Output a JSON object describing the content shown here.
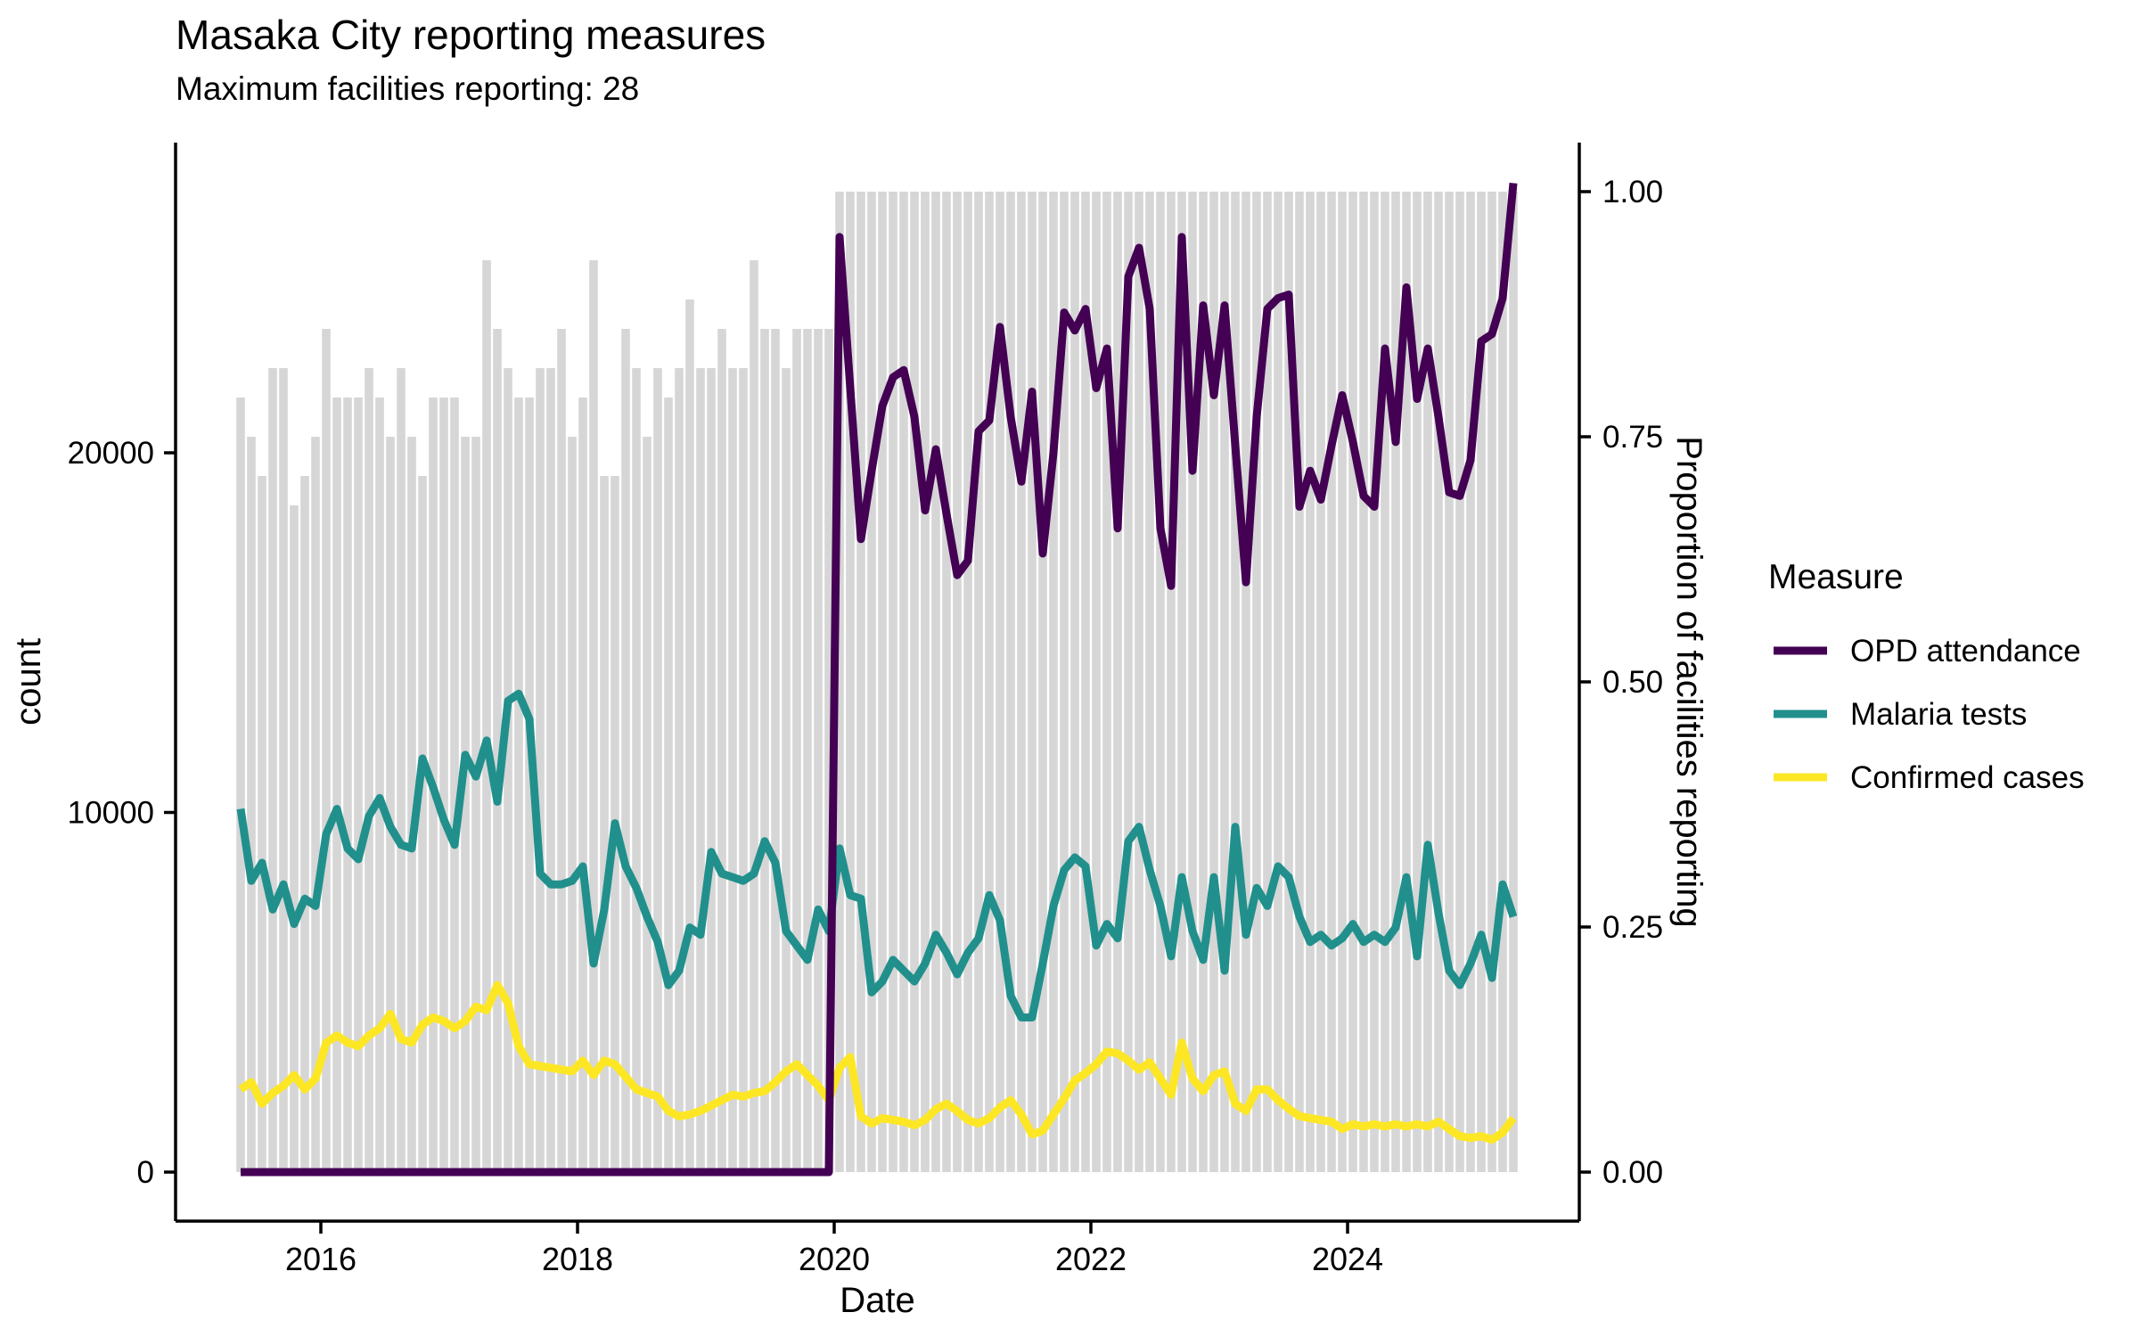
{
  "title": "Masaka City reporting measures",
  "subtitle": "Maximum facilities reporting: 28",
  "max_facilities": 28,
  "chart_data": {
    "type": "line",
    "title": "Masaka City reporting measures",
    "subtitle": "Maximum facilities reporting: 28",
    "xlabel": "Date",
    "ylabel_left": "count",
    "ylabel_right": "Proportion of facilities reporting",
    "legend_title": "Measure",
    "legend_position": "right",
    "grid": false,
    "x_ticks": [
      2016,
      2018,
      2020,
      2022,
      2024
    ],
    "y_left_ticks": [
      0,
      10000,
      20000
    ],
    "y_left_max": 28600,
    "y_right_ticks": [
      "0.00",
      "0.25",
      "0.50",
      "0.75",
      "1.00"
    ],
    "bar_color": "#d6d6d6",
    "start_month": "2015-05",
    "end_month": "2025-04",
    "n_months": 120,
    "bars": {
      "name": "Proportion of facilities reporting",
      "values": [
        0.79,
        0.75,
        0.71,
        0.82,
        0.82,
        0.68,
        0.71,
        0.75,
        0.86,
        0.79,
        0.79,
        0.79,
        0.82,
        0.79,
        0.75,
        0.82,
        0.75,
        0.71,
        0.79,
        0.79,
        0.79,
        0.75,
        0.75,
        0.93,
        0.86,
        0.82,
        0.79,
        0.79,
        0.82,
        0.82,
        0.86,
        0.75,
        0.79,
        0.93,
        0.71,
        0.71,
        0.86,
        0.82,
        0.75,
        0.82,
        0.79,
        0.82,
        0.89,
        0.82,
        0.82,
        0.86,
        0.82,
        0.82,
        0.93,
        0.86,
        0.86,
        0.82,
        0.86,
        0.86,
        0.86,
        0.86,
        1,
        1,
        1,
        1,
        1,
        1,
        1,
        1,
        1,
        1,
        1,
        1,
        1,
        1,
        1,
        1,
        1,
        1,
        1,
        1,
        1,
        1,
        1,
        1,
        1,
        1,
        1,
        1,
        1,
        1,
        1,
        1,
        1,
        1,
        1,
        1,
        1,
        1,
        1,
        1,
        1,
        1,
        1,
        1,
        1,
        1,
        1,
        1,
        1,
        1,
        1,
        1,
        1,
        1,
        1,
        1,
        1,
        1,
        1,
        1,
        1,
        1,
        1,
        1
      ]
    },
    "series": [
      {
        "name": "OPD attendance",
        "color": "#440154",
        "axis": "left",
        "values": [
          0,
          0,
          0,
          0,
          0,
          0,
          0,
          0,
          0,
          0,
          0,
          0,
          0,
          0,
          0,
          0,
          0,
          0,
          0,
          0,
          0,
          0,
          0,
          0,
          0,
          0,
          0,
          0,
          0,
          0,
          0,
          0,
          0,
          0,
          0,
          0,
          0,
          0,
          0,
          0,
          0,
          0,
          0,
          0,
          0,
          0,
          0,
          0,
          0,
          0,
          0,
          0,
          0,
          0,
          0,
          0,
          26000,
          21800,
          17600,
          19500,
          21300,
          22100,
          22300,
          21000,
          18400,
          20100,
          18300,
          16600,
          17000,
          20600,
          20900,
          23500,
          21000,
          19200,
          21700,
          17200,
          20000,
          23900,
          23400,
          24000,
          21800,
          22900,
          17900,
          24900,
          25700,
          24000,
          17900,
          16300,
          26000,
          19500,
          24100,
          21600,
          24100,
          20200,
          16400,
          21000,
          24000,
          24300,
          24400,
          18500,
          19500,
          18700,
          20200,
          21600,
          20300,
          18800,
          18500,
          22900,
          20300,
          24600,
          21500,
          22900,
          21000,
          18900,
          18800,
          19800,
          23100,
          23300,
          24300,
          27500
        ]
      },
      {
        "name": "Malaria tests",
        "color": "#21908C",
        "axis": "left",
        "values": [
          10100,
          8100,
          8600,
          7300,
          8000,
          6900,
          7600,
          7400,
          9400,
          10100,
          9000,
          8700,
          9900,
          10400,
          9600,
          9100,
          9000,
          11500,
          10700,
          9800,
          9100,
          11600,
          11000,
          12000,
          10300,
          13100,
          13300,
          12600,
          8300,
          8000,
          8000,
          8100,
          8500,
          5800,
          7300,
          9700,
          8500,
          7900,
          7100,
          6400,
          5200,
          5600,
          6800,
          6600,
          8900,
          8300,
          8200,
          8100,
          8300,
          9200,
          8600,
          6700,
          6300,
          5900,
          7300,
          6700,
          9000,
          7700,
          7600,
          5000,
          5300,
          5900,
          5600,
          5300,
          5800,
          6600,
          6100,
          5500,
          6100,
          6500,
          7700,
          7000,
          4900,
          4300,
          4300,
          5800,
          7400,
          8400,
          8750,
          8500,
          6300,
          6900,
          6500,
          9200,
          9600,
          8400,
          7400,
          6000,
          8200,
          6700,
          5900,
          8200,
          5600,
          9600,
          6600,
          7900,
          7400,
          8500,
          8200,
          7100,
          6400,
          6600,
          6300,
          6500,
          6900,
          6400,
          6600,
          6400,
          6800,
          8200,
          6000,
          9100,
          7200,
          5600,
          5200,
          5800,
          6600,
          5400,
          8000,
          7100
        ]
      },
      {
        "name": "Confirmed cases",
        "color": "#FDE725",
        "axis": "left",
        "values": [
          2300,
          2500,
          1900,
          2200,
          2400,
          2700,
          2300,
          2600,
          3600,
          3800,
          3600,
          3500,
          3800,
          4000,
          4400,
          3700,
          3600,
          4100,
          4300,
          4200,
          4000,
          4200,
          4600,
          4500,
          5200,
          4700,
          3500,
          3000,
          2950,
          2900,
          2850,
          2800,
          3100,
          2700,
          3100,
          3000,
          2650,
          2300,
          2200,
          2100,
          1700,
          1550,
          1600,
          1700,
          1850,
          2000,
          2150,
          2100,
          2200,
          2250,
          2500,
          2800,
          3000,
          2700,
          2400,
          2000,
          2900,
          3200,
          1550,
          1350,
          1500,
          1450,
          1400,
          1300,
          1450,
          1750,
          1900,
          1700,
          1450,
          1350,
          1500,
          1800,
          2000,
          1600,
          1050,
          1150,
          1600,
          2050,
          2550,
          2750,
          3000,
          3350,
          3300,
          3100,
          2850,
          3050,
          2600,
          2150,
          3600,
          2600,
          2250,
          2700,
          2800,
          1900,
          1700,
          2300,
          2300,
          2000,
          1760,
          1560,
          1500,
          1450,
          1400,
          1200,
          1330,
          1270,
          1330,
          1270,
          1330,
          1270,
          1330,
          1270,
          1400,
          1200,
          1000,
          950,
          1000,
          900,
          1100,
          1500
        ]
      }
    ]
  }
}
